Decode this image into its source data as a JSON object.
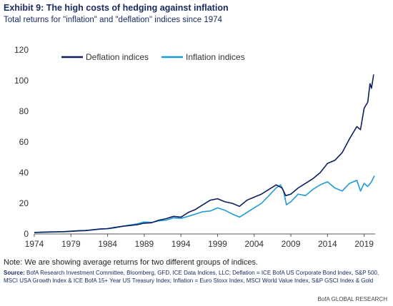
{
  "header": {
    "title": "Exhibit 9: The high costs of hedging against inflation",
    "subtitle": "Total returns for \"inflation\" and \"deflation\" indices since 1974"
  },
  "chart_data": {
    "type": "line",
    "title": "Exhibit 9: The high costs of hedging against inflation",
    "subtitle": "Total returns for \"inflation\" and \"deflation\" indices since 1974",
    "xlabel": "",
    "ylabel": "",
    "xlim": [
      1974,
      2020.5
    ],
    "ylim": [
      0,
      120
    ],
    "x_ticks": [
      "1974",
      "1979",
      "1984",
      "1989",
      "1994",
      "1999",
      "2004",
      "2009",
      "2014",
      "2019"
    ],
    "y_ticks": [
      "0",
      "20",
      "40",
      "60",
      "80",
      "100",
      "120"
    ],
    "grid": false,
    "legend_position": "top-left",
    "series": [
      {
        "name": "Deflation indices",
        "color": "#0b1f5c",
        "points": [
          [
            1974,
            1
          ],
          [
            1975,
            1.1
          ],
          [
            1976,
            1.3
          ],
          [
            1977,
            1.4
          ],
          [
            1978,
            1.5
          ],
          [
            1979,
            1.7
          ],
          [
            1980,
            2
          ],
          [
            1981,
            2.2
          ],
          [
            1982,
            2.8
          ],
          [
            1983,
            3.2
          ],
          [
            1984,
            3.5
          ],
          [
            1985,
            4.3
          ],
          [
            1986,
            5
          ],
          [
            1987,
            5.5
          ],
          [
            1988,
            6
          ],
          [
            1989,
            7
          ],
          [
            1990,
            7.3
          ],
          [
            1991,
            9
          ],
          [
            1992,
            10
          ],
          [
            1993,
            11.5
          ],
          [
            1994,
            11
          ],
          [
            1995,
            14
          ],
          [
            1996,
            16
          ],
          [
            1997,
            19
          ],
          [
            1998,
            22
          ],
          [
            1999,
            23
          ],
          [
            2000,
            21
          ],
          [
            2001,
            20
          ],
          [
            2002,
            18
          ],
          [
            2003,
            22
          ],
          [
            2004,
            24
          ],
          [
            2005,
            26
          ],
          [
            2006,
            29
          ],
          [
            2007,
            32
          ],
          [
            2007.8,
            30
          ],
          [
            2008.3,
            25
          ],
          [
            2009,
            26
          ],
          [
            2010,
            30
          ],
          [
            2011,
            33
          ],
          [
            2012,
            36
          ],
          [
            2013,
            40
          ],
          [
            2014,
            46
          ],
          [
            2015,
            48
          ],
          [
            2016,
            53
          ],
          [
            2017,
            62
          ],
          [
            2018,
            70
          ],
          [
            2018.5,
            68
          ],
          [
            2019,
            82
          ],
          [
            2019.5,
            86
          ],
          [
            2019.8,
            98
          ],
          [
            2020,
            95
          ],
          [
            2020.3,
            104
          ]
        ]
      },
      {
        "name": "Inflation indices",
        "color": "#1f9ad6",
        "points": [
          [
            1974,
            1
          ],
          [
            1975,
            1.1
          ],
          [
            1976,
            1.2
          ],
          [
            1977,
            1.3
          ],
          [
            1978,
            1.5
          ],
          [
            1979,
            1.8
          ],
          [
            1980,
            2.2
          ],
          [
            1981,
            2.3
          ],
          [
            1982,
            2.6
          ],
          [
            1983,
            3.2
          ],
          [
            1984,
            3.4
          ],
          [
            1985,
            4
          ],
          [
            1986,
            5
          ],
          [
            1987,
            5.8
          ],
          [
            1988,
            6.5
          ],
          [
            1989,
            7.8
          ],
          [
            1990,
            7.5
          ],
          [
            1991,
            8.5
          ],
          [
            1992,
            9
          ],
          [
            1993,
            10.5
          ],
          [
            1994,
            10.2
          ],
          [
            1995,
            11.5
          ],
          [
            1996,
            13
          ],
          [
            1997,
            14.5
          ],
          [
            1998,
            15
          ],
          [
            1999,
            17
          ],
          [
            2000,
            15.5
          ],
          [
            2001,
            13
          ],
          [
            2002,
            11
          ],
          [
            2003,
            14
          ],
          [
            2004,
            17
          ],
          [
            2005,
            20
          ],
          [
            2006,
            25
          ],
          [
            2007,
            30
          ],
          [
            2007.6,
            32
          ],
          [
            2008,
            28
          ],
          [
            2008.4,
            19
          ],
          [
            2009,
            21
          ],
          [
            2010,
            26
          ],
          [
            2011,
            25
          ],
          [
            2012,
            29
          ],
          [
            2013,
            32
          ],
          [
            2014,
            34
          ],
          [
            2015,
            30
          ],
          [
            2016,
            28
          ],
          [
            2017,
            33
          ],
          [
            2018,
            35
          ],
          [
            2018.5,
            28
          ],
          [
            2019,
            33
          ],
          [
            2019.5,
            31
          ],
          [
            2020,
            34
          ],
          [
            2020.4,
            38
          ]
        ]
      }
    ]
  },
  "note": "Note: We are showing average returns for two different groups of indices.",
  "source": {
    "label": "Source:",
    "text": " BofA Research Investment Committee, Bloomberg, GFD, ICE Data Indices, LLC; Deflation = ICE BofA US Corporate Bond Index, S&P 500, MSCI USA Growth Index & ICE BofA 15+ Year US Treasury Index; Inflation = Euro Stoxx Index, MSCI World Value Index, S&P GSCI Index & Gold"
  },
  "footer": "BofA GLOBAL RESEARCH"
}
